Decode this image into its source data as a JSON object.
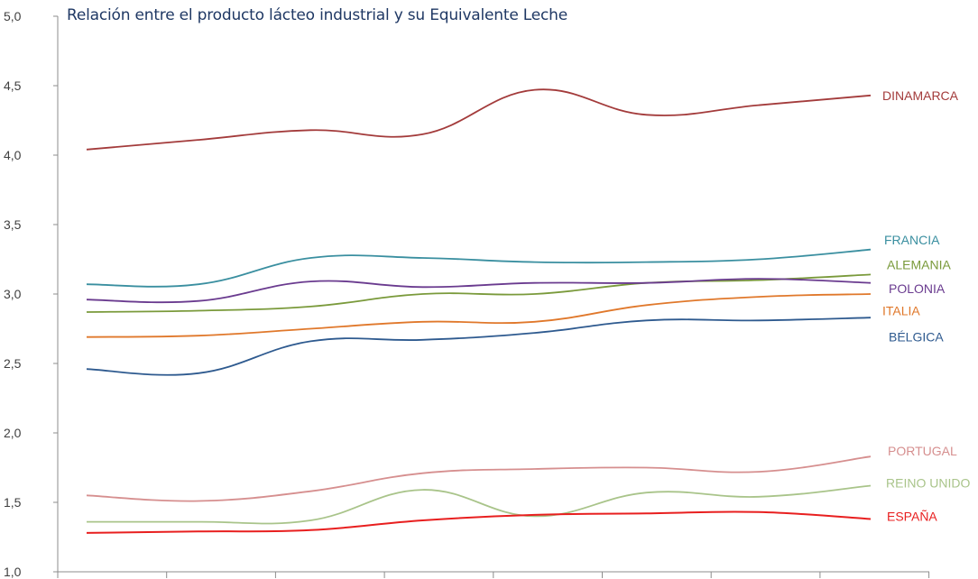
{
  "chart_data": {
    "type": "line",
    "subtitle": "Relación entre el producto lácteo industrial y su Equivalente Leche",
    "xlabel": "",
    "ylabel": "",
    "ylim": [
      1.0,
      5.0
    ],
    "yticks": [
      "1,0",
      "1,5",
      "2,0",
      "2,5",
      "3,0",
      "3,5",
      "4,0",
      "4,5",
      "5,0"
    ],
    "grid": false,
    "legend": "inline-right",
    "series": [
      {
        "name": "DINAMARCA",
        "color": "#a33b3b",
        "values": [
          4.04,
          4.11,
          4.18,
          4.15,
          4.47,
          4.29,
          4.36,
          4.43
        ]
      },
      {
        "name": "FRANCIA",
        "color": "#3a8fa0",
        "values": [
          3.07,
          3.07,
          3.26,
          3.26,
          3.23,
          3.23,
          3.25,
          3.32
        ]
      },
      {
        "name": "ALEMANIA",
        "color": "#7a9a3b",
        "values": [
          2.87,
          2.88,
          2.91,
          3.0,
          3.0,
          3.08,
          3.1,
          3.14
        ]
      },
      {
        "name": "POLONIA",
        "color": "#6a3b8f",
        "values": [
          2.96,
          2.95,
          3.09,
          3.05,
          3.08,
          3.08,
          3.11,
          3.08
        ]
      },
      {
        "name": "ITALIA",
        "color": "#e0782b",
        "values": [
          2.69,
          2.7,
          2.75,
          2.8,
          2.8,
          2.92,
          2.98,
          3.0
        ]
      },
      {
        "name": "BÉLGICA",
        "color": "#2e5a8f",
        "values": [
          2.46,
          2.43,
          2.66,
          2.67,
          2.72,
          2.81,
          2.81,
          2.83
        ]
      },
      {
        "name": "PORTUGAL",
        "color": "#d68f8f",
        "values": [
          1.55,
          1.51,
          1.58,
          1.71,
          1.74,
          1.75,
          1.72,
          1.83
        ]
      },
      {
        "name": "REINO UNIDO",
        "color": "#a9c48a",
        "values": [
          1.36,
          1.36,
          1.37,
          1.59,
          1.4,
          1.57,
          1.54,
          1.62
        ]
      },
      {
        "name": "ESPAÑA",
        "color": "#e81f1f",
        "values": [
          1.28,
          1.29,
          1.3,
          1.37,
          1.41,
          1.42,
          1.43,
          1.38
        ]
      }
    ]
  }
}
